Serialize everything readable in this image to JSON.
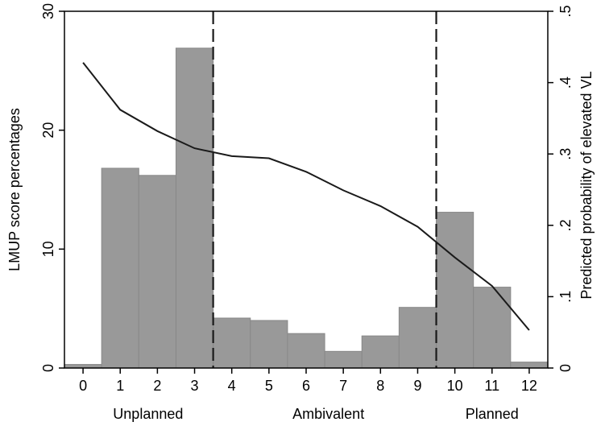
{
  "chart_data": {
    "type": "bar",
    "categories": [
      "0",
      "1",
      "2",
      "3",
      "4",
      "5",
      "6",
      "7",
      "8",
      "9",
      "10",
      "11",
      "12"
    ],
    "values": [
      0.3,
      16.8,
      16.2,
      26.9,
      4.2,
      4.0,
      2.9,
      1.4,
      2.7,
      5.1,
      13.1,
      6.8,
      0.5
    ],
    "ylabel": "LMUP score percentages",
    "ylim": [
      0,
      30
    ],
    "yticks": [
      "0",
      "10",
      "20",
      "30"
    ],
    "y2label": "Predicted probability of elevated VL",
    "y2lim": [
      0,
      0.5
    ],
    "y2ticks": [
      "0",
      ".1",
      ".2",
      ".3",
      ".4",
      ".5"
    ],
    "line": {
      "x": [
        0,
        1,
        2,
        3,
        4,
        5,
        6,
        7,
        8,
        9,
        10,
        11,
        12
      ],
      "y": [
        0.428,
        0.362,
        0.332,
        0.308,
        0.297,
        0.294,
        0.275,
        0.249,
        0.227,
        0.198,
        0.155,
        0.115,
        0.053
      ]
    },
    "cutoffs": [
      3.5,
      9.5
    ],
    "groups": [
      {
        "label": "Unplanned",
        "center": 1.75
      },
      {
        "label": "Ambivalent",
        "center": 6.6
      },
      {
        "label": "Planned",
        "center": 11.0
      }
    ],
    "xlim": [
      -0.5,
      12.5
    ],
    "colors": {
      "bar": "#999999",
      "bar_edge": "#888888",
      "line": "#1a1a1a"
    }
  }
}
